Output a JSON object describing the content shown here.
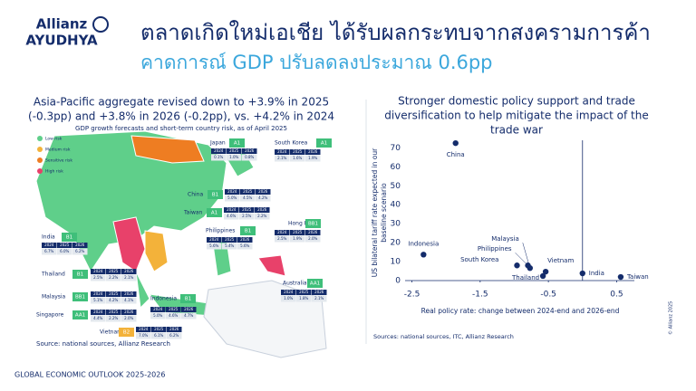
{
  "header": {
    "logo_top": "Allianz",
    "logo_bottom": "AYUDHYA",
    "title": "ตลาดเกิดใหม่เอเชีย ได้รับผลกระทบจากสงครามการค้า",
    "subtitle": "คาดการณ์ GDP ปรับลดลงประมาณ 0.6pp"
  },
  "map": {
    "title_lines": [
      "Asia-Pacific aggregate revised down to +3.9% in 2025",
      "(-0.3pp) and +3.8% in 2026 (-0.2pp), vs. +4.2% in 2024"
    ],
    "subtitle": "GDP growth forecasts and short-term country risk, as of April 2025",
    "legend": [
      {
        "name": "Low risk",
        "color": "#5fcf8a"
      },
      {
        "name": "Medium risk",
        "color": "#f3b23a"
      },
      {
        "name": "Sensitive risk",
        "color": "#ee7d22"
      },
      {
        "name": "High risk",
        "color": "#e8416a"
      }
    ],
    "years": [
      "2024",
      "2025",
      "2026"
    ],
    "countries": [
      {
        "name": "Japan",
        "rating": "A1",
        "color": "#3fbf7a",
        "forecasts": [
          "0.1%",
          "1.0%",
          "0.8%"
        ]
      },
      {
        "name": "South Korea",
        "rating": "A1",
        "color": "#3fbf7a",
        "forecasts": [
          "2.1%",
          "1.6%",
          "1.9%"
        ]
      },
      {
        "name": "China",
        "rating": "B1",
        "color": "#3fbf7a",
        "forecasts": [
          "5.0%",
          "4.5%",
          "4.2%"
        ]
      },
      {
        "name": "Taiwan",
        "rating": "A1",
        "color": "#3fbf7a",
        "forecasts": [
          "4.6%",
          "2.5%",
          "2.2%"
        ]
      },
      {
        "name": "Hong Kong",
        "rating": "BB1",
        "color": "#3fbf7a",
        "forecasts": [
          "2.5%",
          "1.9%",
          "2.0%"
        ]
      },
      {
        "name": "Philippines",
        "rating": "B1",
        "color": "#3fbf7a",
        "forecasts": [
          "5.6%",
          "5.4%",
          "5.6%"
        ]
      },
      {
        "name": "India",
        "rating": "B1",
        "color": "#3fbf7a",
        "forecasts": [
          "6.7%",
          "6.0%",
          "6.2%"
        ]
      },
      {
        "name": "Thailand",
        "rating": "B1",
        "color": "#3fbf7a",
        "forecasts": [
          "2.5%",
          "2.2%",
          "2.1%"
        ]
      },
      {
        "name": "Malaysia",
        "rating": "BB1",
        "color": "#3fbf7a",
        "forecasts": [
          "5.1%",
          "4.2%",
          "4.1%"
        ]
      },
      {
        "name": "Singapore",
        "rating": "AA1",
        "color": "#3fbf7a",
        "forecasts": [
          "4.4%",
          "2.2%",
          "2.0%"
        ]
      },
      {
        "name": "Indonesia",
        "rating": "B1",
        "color": "#3fbf7a",
        "forecasts": [
          "5.0%",
          "4.6%",
          "4.7%"
        ]
      },
      {
        "name": "Australia",
        "rating": "AA1",
        "color": "#3fbf7a",
        "forecasts": [
          "1.0%",
          "1.8%",
          "2.1%"
        ]
      },
      {
        "name": "Vietnam",
        "rating": "B2",
        "color": "#f3b23a",
        "forecasts": [
          "7.0%",
          "6.1%",
          "6.2%"
        ]
      }
    ],
    "source": "Source: national sources, Allianz Research"
  },
  "chart_data": {
    "type": "scatter",
    "title_lines": [
      "Stronger domestic policy support and trade",
      "diversification to help mitigate the impact of the",
      "trade war"
    ],
    "xlabel": "Real policy rate: change between  2024-end and 2026-end",
    "ylabel_lines": [
      "US bilateral tariff rate expected in our",
      "baseline scenario"
    ],
    "labels": [
      "China",
      "Indonesia",
      "Malaysia",
      "Philippines",
      "South Korea",
      "Vietnam",
      "Thailand",
      "India",
      "Taiwan"
    ],
    "x": [
      -1.86,
      -2.33,
      -0.77,
      -0.8,
      -0.96,
      -0.54,
      -0.58,
      0.0,
      0.56
    ],
    "values": [
      72.5,
      13.7,
      6.6,
      8,
      8,
      4.7,
      2.4,
      3.8,
      1.9
    ],
    "color": "#142c6b",
    "xlim": [
      -2.6,
      0.76
    ],
    "ylim": [
      0,
      74
    ],
    "xticks": [
      -2.5,
      -1.5,
      -0.5,
      0.5
    ],
    "yticks": [
      0,
      10,
      20,
      30,
      40,
      50,
      60,
      70
    ],
    "vline_x": 0,
    "source": "Sources: national sources, ITC, Allianz Research"
  },
  "footer": {
    "text": "GLOBAL ECONOMIC OUTLOOK 2025-2026",
    "copyright": "© Allianz 2025"
  }
}
